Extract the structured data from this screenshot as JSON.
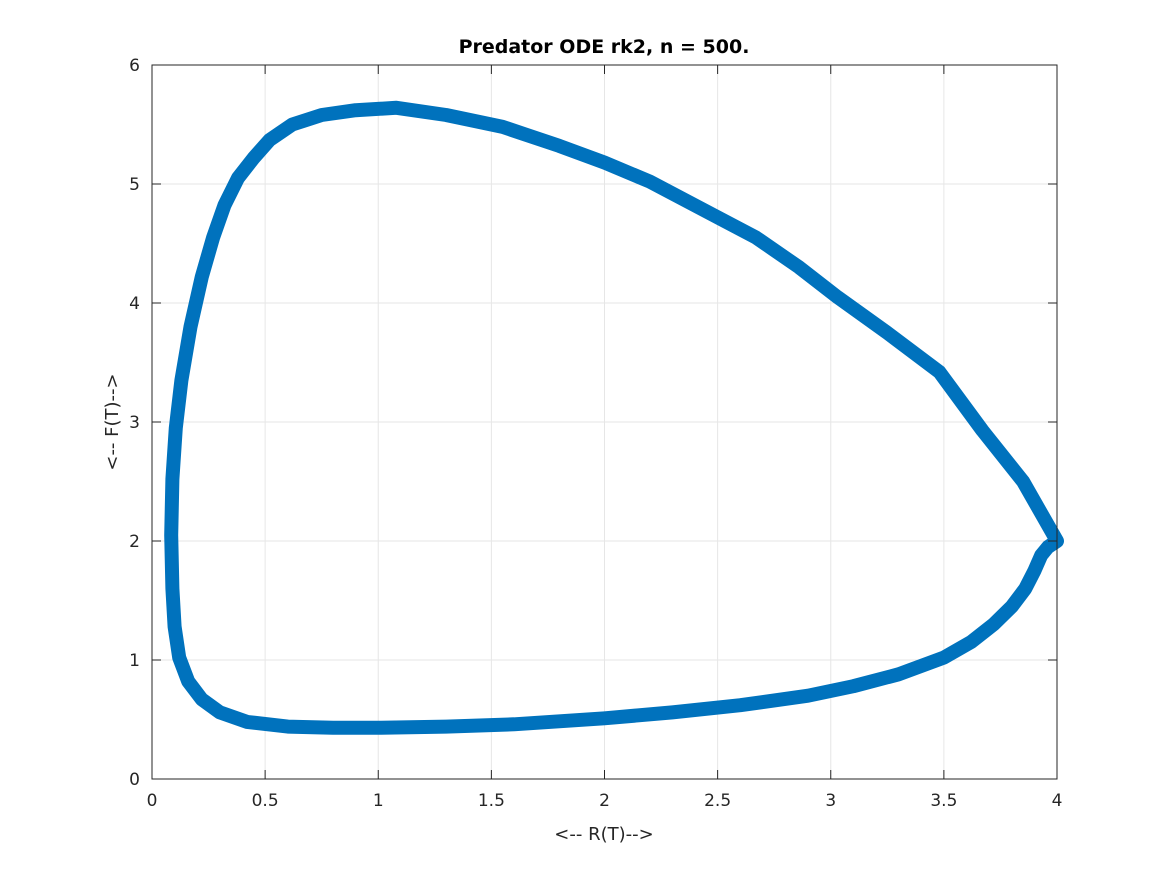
{
  "chart_data": {
    "type": "line",
    "title": "Predator ODE rk2, n = 500.",
    "xlabel": "<-- R(T)-->",
    "ylabel": "<-- F(T)-->",
    "xlim": [
      0,
      4
    ],
    "ylim": [
      0,
      6
    ],
    "x_ticks": [
      "0",
      "0.5",
      "1",
      "1.5",
      "2",
      "2.5",
      "3",
      "3.5",
      "4"
    ],
    "y_ticks": [
      "0",
      "1",
      "2",
      "3",
      "4",
      "5",
      "6"
    ],
    "grid": true,
    "legend": "none",
    "colors": {
      "line": "#0072BD",
      "grid": "#e6e6e6",
      "axis": "#262626"
    },
    "series": [
      {
        "x": [
          4.0,
          3.85,
          3.67,
          3.48,
          3.25,
          3.03,
          2.86,
          2.67,
          2.5,
          2.2,
          2.0,
          1.8,
          1.55,
          1.3,
          1.08,
          0.9,
          0.75,
          0.62,
          0.52,
          0.45,
          0.38,
          0.32,
          0.27,
          0.22,
          0.17,
          0.13,
          0.105,
          0.09,
          0.085,
          0.09,
          0.1,
          0.12,
          0.16,
          0.22,
          0.3,
          0.42,
          0.6,
          0.8,
          1.0,
          1.3,
          1.6,
          2.0,
          2.3,
          2.6,
          2.9,
          3.1,
          3.3,
          3.5,
          3.62,
          3.72,
          3.8,
          3.86,
          3.9,
          3.93,
          3.96,
          4.0
        ],
        "y": [
          2.0,
          2.5,
          2.93,
          3.42,
          3.75,
          4.05,
          4.3,
          4.55,
          4.72,
          5.02,
          5.18,
          5.32,
          5.48,
          5.58,
          5.64,
          5.62,
          5.58,
          5.5,
          5.37,
          5.22,
          5.05,
          4.82,
          4.55,
          4.22,
          3.8,
          3.35,
          2.95,
          2.52,
          2.05,
          1.6,
          1.28,
          1.02,
          0.82,
          0.67,
          0.56,
          0.48,
          0.44,
          0.43,
          0.43,
          0.44,
          0.46,
          0.51,
          0.56,
          0.62,
          0.7,
          0.78,
          0.88,
          1.02,
          1.15,
          1.3,
          1.45,
          1.6,
          1.75,
          1.88,
          1.95,
          2.0
        ]
      }
    ]
  }
}
